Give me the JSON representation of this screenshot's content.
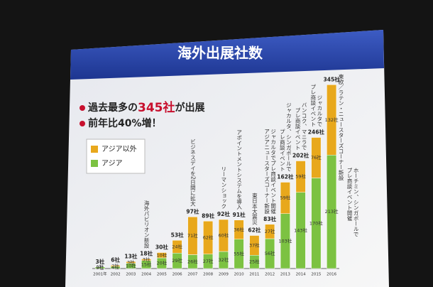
{
  "chart_data": {
    "type": "stacked-bar",
    "title": "海外出展社数",
    "bullets": [
      {
        "parts": [
          "過去最多の",
          "345社",
          "が出展"
        ]
      },
      {
        "parts": [
          "前年比40%増！"
        ]
      }
    ],
    "categories": [
      "2001年",
      "2002",
      "2003",
      "2004",
      "2005",
      "2006",
      "2007",
      "2008",
      "2009",
      "2010",
      "2011",
      "2012",
      "2013",
      "2014",
      "2015",
      "2016"
    ],
    "series": [
      {
        "name": "アジア",
        "color": "#7cc242",
        "values": [
          3,
          4,
          10,
          15,
          20,
          29,
          26,
          27,
          32,
          55,
          25,
          56,
          103,
          143,
          170,
          213
        ],
        "value_labels": [
          "3社",
          "4社",
          "10社",
          "15社",
          "20社",
          "29社",
          "26社",
          "27社",
          "32社",
          "55社",
          "25社",
          "56社",
          "103社",
          "143社",
          "170社",
          "213社"
        ]
      },
      {
        "name": "アジア以外",
        "color": "#e8a81c",
        "values": [
          0,
          2,
          3,
          3,
          10,
          24,
          71,
          62,
          60,
          36,
          37,
          27,
          59,
          59,
          76,
          132
        ],
        "value_labels": [
          "0社",
          "2社",
          "3社",
          "3社",
          "10社",
          "24社",
          "71社",
          "62社",
          "60社",
          "36社",
          "37社",
          "27社",
          "59社",
          "59社",
          "76社",
          "132社"
        ]
      }
    ],
    "totals": {
      "values": [
        3,
        6,
        13,
        18,
        30,
        53,
        97,
        89,
        92,
        91,
        62,
        83,
        162,
        202,
        246,
        345
      ],
      "value_labels": [
        "3社",
        "6社",
        "13社",
        "18社",
        "30社",
        "53社",
        "97社",
        "89社",
        "92社",
        "91社",
        "62社",
        "83社",
        "162社",
        "202社",
        "246社",
        "345社"
      ]
    },
    "annotations": [
      {
        "x": "2004",
        "lines": [
          "海外パビリオン新設"
        ]
      },
      {
        "x": "2007",
        "lines": [
          "ビジネスデイを2日間に拡大"
        ]
      },
      {
        "x": "2009",
        "lines": [
          "リーマンショック"
        ]
      },
      {
        "x": "2010",
        "lines": [
          "アポイントメントシステムを導入"
        ]
      },
      {
        "x": "2011",
        "lines": [
          "東日本大震災"
        ]
      },
      {
        "x": "2012",
        "lines": [
          "ジャカルタでプレ商談イベント開催",
          "アジアニュースターズコーナー新設"
        ]
      },
      {
        "x": "2013",
        "lines": [
          "ジャカルタ、シンガポールで",
          "プレ商談イベント"
        ]
      },
      {
        "x": "2014",
        "lines": [
          "バンコク、マニラで",
          "プレ商談イベント"
        ]
      },
      {
        "x": "2015",
        "lines": [
          "ジャカルタで",
          "プレ商談イベント"
        ]
      },
      {
        "x": "2016",
        "lines": [
          "東欧／ラテン・ニュースターズコーナー新設"
        ]
      },
      {
        "x": "2016",
        "lines": [
          "ホーチミン、シンガポールで",
          "プレ商談イベント開催"
        ]
      }
    ],
    "ylim": [
      0,
      360
    ]
  }
}
